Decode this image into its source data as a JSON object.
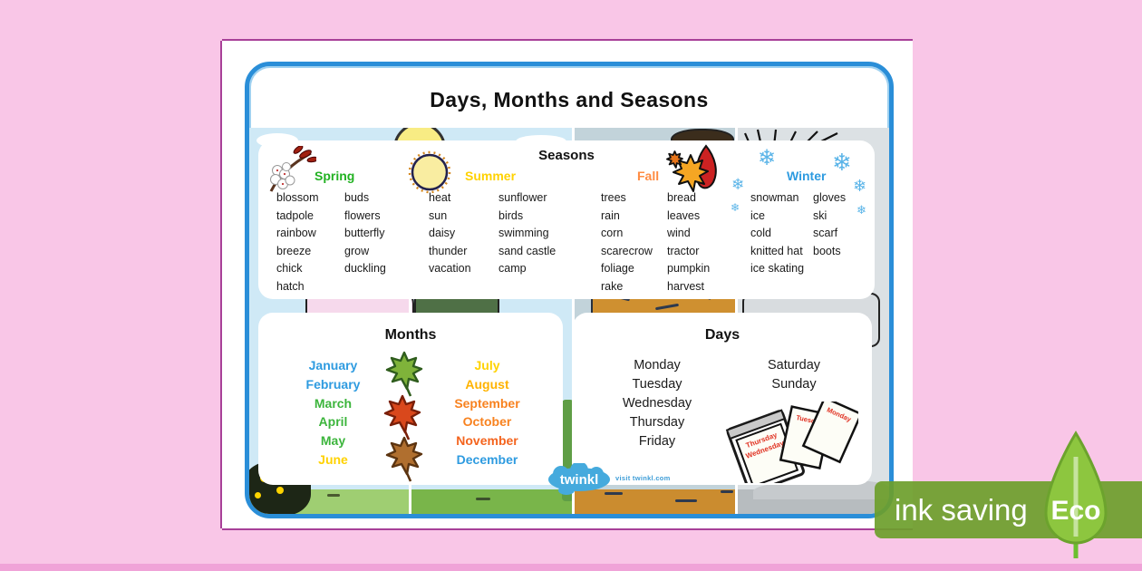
{
  "page_title": "Days, Months and Seasons",
  "seasons_panel": {
    "title": "Seasons",
    "spring": {
      "label": "Spring",
      "color": "#22b222",
      "col1": [
        "blossom",
        "tadpole",
        "rainbow",
        "breeze",
        "chick",
        "hatch"
      ],
      "col2": [
        "buds",
        "flowers",
        "butterfly",
        "grow",
        "duckling"
      ]
    },
    "summer": {
      "label": "Summer",
      "color": "#ffd200",
      "col1": [
        "heat",
        "sun",
        "daisy",
        "thunder",
        "vacation"
      ],
      "col2": [
        "sunflower",
        "birds",
        "swimming",
        "sand castle",
        "camp"
      ]
    },
    "fall": {
      "label": "Fall",
      "color": "#ff8c42",
      "col1": [
        "trees",
        "rain",
        "corn",
        "scarecrow",
        "foliage",
        "rake"
      ],
      "col2": [
        "bread",
        "leaves",
        "wind",
        "tractor",
        "pumpkin",
        "harvest"
      ]
    },
    "winter": {
      "label": "Winter",
      "color": "#2e9be0",
      "col1": [
        "snowman",
        "ice",
        "cold",
        "knitted hat",
        "ice skating"
      ],
      "col2": [
        "gloves",
        "ski",
        "scarf",
        "boots"
      ]
    }
  },
  "months_panel": {
    "title": "Months",
    "left": [
      {
        "label": "January",
        "color": "#2e9be0"
      },
      {
        "label": "February",
        "color": "#2e9be0"
      },
      {
        "label": "March",
        "color": "#3cb53c"
      },
      {
        "label": "April",
        "color": "#3cb53c"
      },
      {
        "label": "May",
        "color": "#3cb53c"
      },
      {
        "label": "June",
        "color": "#ffd200"
      }
    ],
    "right": [
      {
        "label": "July",
        "color": "#ffd200"
      },
      {
        "label": "August",
        "color": "#ffb300"
      },
      {
        "label": "September",
        "color": "#f8821f"
      },
      {
        "label": "October",
        "color": "#f8821f"
      },
      {
        "label": "November",
        "color": "#f4641e"
      },
      {
        "label": "December",
        "color": "#2e9be0"
      }
    ]
  },
  "days_panel": {
    "title": "Days",
    "weekdays": [
      "Monday",
      "Tuesday",
      "Wednesday",
      "Thursday",
      "Friday"
    ],
    "weekend": [
      "Saturday",
      "Sunday"
    ],
    "calendar_pages": {
      "pad_top": "Thursday",
      "pad_front": "Wednesday",
      "loose_1": "Tuesday",
      "loose_2": "Monday"
    }
  },
  "footer": {
    "brand": "twinkl",
    "visit_text": "visit twinkl.com"
  },
  "eco": {
    "band_text": "ink saving",
    "badge_text": "Eco"
  },
  "icons": {
    "snowflake": "❄"
  }
}
